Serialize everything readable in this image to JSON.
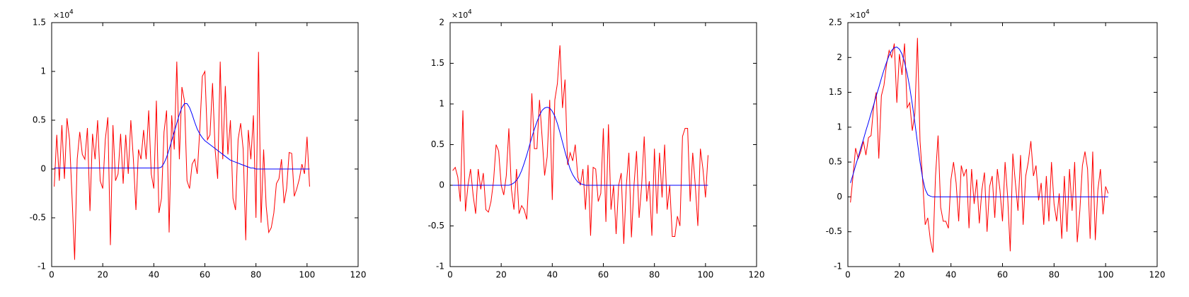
{
  "chart_data": [
    {
      "type": "line",
      "y_multiplier": {
        "base": "×10",
        "exponent": "4"
      },
      "xlim": [
        0,
        120
      ],
      "xticks": [
        0,
        20,
        40,
        60,
        80,
        100,
        120
      ],
      "ylim": [
        -1,
        1.5
      ],
      "yticks": [
        -1,
        -0.5,
        0,
        0.5,
        1,
        1.5
      ],
      "x": [
        1,
        2,
        3,
        4,
        5,
        6,
        7,
        8,
        9,
        10,
        11,
        12,
        13,
        14,
        15,
        16,
        17,
        18,
        19,
        20,
        21,
        22,
        23,
        24,
        25,
        26,
        27,
        28,
        29,
        30,
        31,
        32,
        33,
        34,
        35,
        36,
        37,
        38,
        39,
        40,
        41,
        42,
        43,
        44,
        45,
        46,
        47,
        48,
        49,
        50,
        51,
        52,
        53,
        54,
        55,
        56,
        57,
        58,
        59,
        60,
        61,
        62,
        63,
        64,
        65,
        66,
        67,
        68,
        69,
        70,
        71,
        72,
        73,
        74,
        75,
        76,
        77,
        78,
        79,
        80,
        81,
        82,
        83,
        84,
        85,
        86,
        87,
        88,
        89,
        90,
        91,
        92,
        93,
        94,
        95,
        96,
        97,
        98,
        99,
        100,
        101
      ],
      "series": [
        {
          "color": "#ff0000",
          "values": [
            -0.18,
            0.35,
            -0.12,
            0.45,
            -0.1,
            0.52,
            0.3,
            -0.3,
            -0.93,
            0.1,
            0.38,
            0.15,
            0.1,
            0.42,
            -0.43,
            0.36,
            0.1,
            0.5,
            -0.12,
            -0.2,
            0.3,
            0.53,
            -0.78,
            0.45,
            -0.12,
            -0.05,
            0.36,
            -0.15,
            0.35,
            -0.05,
            0.5,
            0.1,
            -0.42,
            0.2,
            0.1,
            0.4,
            0.1,
            0.6,
            -0.05,
            -0.2,
            0.7,
            -0.45,
            -0.3,
            0.38,
            0.6,
            -0.65,
            0.55,
            0.2,
            1.1,
            0.1,
            0.84,
            0.7,
            -0.12,
            -0.2,
            0.05,
            0.1,
            -0.05,
            0.4,
            0.95,
            1.0,
            0.3,
            0.35,
            0.88,
            0.2,
            -0.1,
            1.1,
            0.1,
            0.85,
            0.15,
            0.5,
            -0.3,
            -0.42,
            0.3,
            0.47,
            0.2,
            -0.73,
            0.4,
            0.1,
            0.55,
            -0.5,
            1.2,
            -0.55,
            0.2,
            -0.38,
            -0.65,
            -0.6,
            -0.45,
            -0.15,
            -0.1,
            0.1,
            -0.35,
            -0.2,
            0.17,
            0.16,
            -0.28,
            -0.2,
            -0.1,
            0.05,
            -0.05,
            0.33,
            -0.18
          ]
        },
        {
          "color": "#0000ff",
          "values": [
            0.01,
            0.01,
            0.01,
            0.01,
            0.01,
            0.01,
            0.01,
            0.01,
            0.01,
            0.01,
            0.01,
            0.01,
            0.01,
            0.01,
            0.01,
            0.01,
            0.01,
            0.01,
            0.01,
            0.01,
            0.01,
            0.01,
            0.01,
            0.01,
            0.01,
            0.01,
            0.01,
            0.01,
            0.01,
            0.01,
            0.01,
            0.01,
            0.01,
            0.01,
            0.01,
            0.01,
            0.01,
            0.01,
            0.01,
            0.01,
            0.01,
            0.01,
            0.02,
            0.06,
            0.12,
            0.2,
            0.29,
            0.38,
            0.47,
            0.56,
            0.63,
            0.67,
            0.67,
            0.63,
            0.56,
            0.48,
            0.41,
            0.36,
            0.32,
            0.29,
            0.27,
            0.25,
            0.23,
            0.21,
            0.19,
            0.17,
            0.15,
            0.13,
            0.11,
            0.09,
            0.08,
            0.07,
            0.06,
            0.05,
            0.04,
            0.03,
            0.02,
            0.01,
            0.01,
            0,
            0,
            0,
            0,
            0,
            0,
            0,
            0,
            0,
            0,
            0,
            0,
            0,
            0,
            0,
            0,
            0,
            0,
            0,
            0,
            0,
            0
          ]
        }
      ]
    },
    {
      "type": "line",
      "y_multiplier": {
        "base": "×10",
        "exponent": "4"
      },
      "xlim": [
        0,
        120
      ],
      "xticks": [
        0,
        20,
        40,
        60,
        80,
        100,
        120
      ],
      "ylim": [
        -1,
        2
      ],
      "yticks": [
        -1,
        -0.5,
        0,
        0.5,
        1,
        1.5,
        2
      ],
      "x": [
        1,
        2,
        3,
        4,
        5,
        6,
        7,
        8,
        9,
        10,
        11,
        12,
        13,
        14,
        15,
        16,
        17,
        18,
        19,
        20,
        21,
        22,
        23,
        24,
        25,
        26,
        27,
        28,
        29,
        30,
        31,
        32,
        33,
        34,
        35,
        36,
        37,
        38,
        39,
        40,
        41,
        42,
        43,
        44,
        45,
        46,
        47,
        48,
        49,
        50,
        51,
        52,
        53,
        54,
        55,
        56,
        57,
        58,
        59,
        60,
        61,
        62,
        63,
        64,
        65,
        66,
        67,
        68,
        69,
        70,
        71,
        72,
        73,
        74,
        75,
        76,
        77,
        78,
        79,
        80,
        81,
        82,
        83,
        84,
        85,
        86,
        87,
        88,
        89,
        90,
        91,
        92,
        93,
        94,
        95,
        96,
        97,
        98,
        99,
        100,
        101
      ],
      "series": [
        {
          "color": "#ff0000",
          "values": [
            0.18,
            0.22,
            0.1,
            -0.2,
            0.92,
            -0.32,
            0.0,
            0.2,
            -0.12,
            -0.35,
            0.2,
            -0.05,
            0.15,
            -0.3,
            -0.33,
            -0.2,
            0.05,
            0.5,
            0.42,
            0.0,
            -0.12,
            0.12,
            0.7,
            -0.05,
            -0.3,
            0.2,
            -0.35,
            -0.25,
            -0.3,
            -0.42,
            0.2,
            1.13,
            0.45,
            0.45,
            1.05,
            0.6,
            0.12,
            0.35,
            1.05,
            -0.18,
            1.05,
            1.25,
            1.72,
            0.95,
            1.3,
            0.25,
            0.4,
            0.3,
            0.5,
            0.1,
            0.0,
            0.2,
            -0.3,
            0.25,
            -0.62,
            0.22,
            0.2,
            -0.2,
            -0.1,
            0.7,
            -0.45,
            0.75,
            -0.3,
            0.0,
            -0.6,
            0.0,
            0.15,
            -0.72,
            0.0,
            0.4,
            -0.64,
            0.0,
            0.42,
            -0.4,
            0.0,
            0.6,
            -0.2,
            0.05,
            -0.62,
            0.45,
            -0.35,
            0.4,
            -0.15,
            0.5,
            -0.3,
            0.0,
            -0.63,
            -0.63,
            -0.38,
            -0.5,
            0.6,
            0.7,
            0.7,
            -0.2,
            0.4,
            0.0,
            -0.5,
            0.45,
            0.2,
            -0.15,
            0.37
          ]
        },
        {
          "color": "#0000ff",
          "values": [
            0,
            0,
            0,
            0,
            0,
            0,
            0,
            0,
            0,
            0,
            0,
            0,
            0,
            0,
            0,
            0,
            0,
            0,
            0,
            0,
            0,
            0,
            0,
            0.01,
            0.03,
            0.06,
            0.11,
            0.18,
            0.27,
            0.37,
            0.48,
            0.59,
            0.69,
            0.78,
            0.86,
            0.92,
            0.95,
            0.96,
            0.95,
            0.91,
            0.85,
            0.76,
            0.65,
            0.53,
            0.41,
            0.3,
            0.2,
            0.13,
            0.08,
            0.04,
            0.02,
            0.01,
            0,
            0,
            0,
            0,
            0,
            0,
            0,
            0,
            0,
            0,
            0,
            0,
            0,
            0,
            0,
            0,
            0,
            0,
            0,
            0,
            0,
            0,
            0,
            0,
            0,
            0,
            0,
            0,
            0,
            0,
            0,
            0,
            0,
            0,
            0,
            0,
            0,
            0,
            0,
            0,
            0,
            0,
            0,
            0,
            0,
            0,
            0,
            0,
            0
          ]
        }
      ]
    },
    {
      "type": "line",
      "y_multiplier": {
        "base": "×10",
        "exponent": "4"
      },
      "xlim": [
        0,
        120
      ],
      "xticks": [
        0,
        20,
        40,
        60,
        80,
        100,
        120
      ],
      "ylim": [
        -1,
        2.5
      ],
      "yticks": [
        -1,
        -0.5,
        0,
        0.5,
        1,
        1.5,
        2,
        2.5
      ],
      "x": [
        1,
        2,
        3,
        4,
        5,
        6,
        7,
        8,
        9,
        10,
        11,
        12,
        13,
        14,
        15,
        16,
        17,
        18,
        19,
        20,
        21,
        22,
        23,
        24,
        25,
        26,
        27,
        28,
        29,
        30,
        31,
        32,
        33,
        34,
        35,
        36,
        37,
        38,
        39,
        40,
        41,
        42,
        43,
        44,
        45,
        46,
        47,
        48,
        49,
        50,
        51,
        52,
        53,
        54,
        55,
        56,
        57,
        58,
        59,
        60,
        61,
        62,
        63,
        64,
        65,
        66,
        67,
        68,
        69,
        70,
        71,
        72,
        73,
        74,
        75,
        76,
        77,
        78,
        79,
        80,
        81,
        82,
        83,
        84,
        85,
        86,
        87,
        88,
        89,
        90,
        91,
        92,
        93,
        94,
        95,
        96,
        97,
        98,
        99,
        100,
        101
      ],
      "series": [
        {
          "color": "#ff0000",
          "values": [
            -0.08,
            0.3,
            0.7,
            0.55,
            0.65,
            0.8,
            0.6,
            0.85,
            0.88,
            1.3,
            1.5,
            0.55,
            1.45,
            1.6,
            1.9,
            2.1,
            2.0,
            2.2,
            1.35,
            2.05,
            1.75,
            2.2,
            1.28,
            1.35,
            0.95,
            1.2,
            2.28,
            0.8,
            0.25,
            -0.4,
            -0.3,
            -0.62,
            -0.8,
            0.3,
            0.88,
            -0.15,
            -0.35,
            -0.35,
            -0.45,
            0.25,
            0.5,
            0.2,
            -0.35,
            0.45,
            0.3,
            0.4,
            -0.45,
            0.4,
            -0.1,
            0.25,
            -0.38,
            0.1,
            0.35,
            -0.5,
            0.15,
            0.3,
            -0.3,
            0.4,
            0.1,
            -0.35,
            0.5,
            0.0,
            -0.78,
            0.62,
            0.2,
            -0.2,
            0.6,
            -0.4,
            0.3,
            0.5,
            0.8,
            0.3,
            0.45,
            -0.05,
            0.2,
            -0.4,
            0.3,
            -0.35,
            0.5,
            -0.1,
            -0.35,
            0.05,
            -0.6,
            0.3,
            -0.5,
            0.4,
            -0.2,
            0.5,
            -0.65,
            -0.2,
            0.45,
            0.65,
            0.4,
            -0.6,
            0.65,
            -0.62,
            0.1,
            0.4,
            -0.25,
            0.15,
            0.05
          ]
        },
        {
          "color": "#0000ff",
          "values": [
            0.2,
            0.32,
            0.45,
            0.57,
            0.7,
            0.82,
            0.95,
            1.07,
            1.2,
            1.32,
            1.45,
            1.57,
            1.7,
            1.82,
            1.93,
            2.03,
            2.1,
            2.14,
            2.15,
            2.12,
            2.05,
            1.93,
            1.77,
            1.57,
            1.33,
            1.06,
            0.78,
            0.5,
            0.27,
            0.11,
            0.03,
            0.01,
            0,
            0,
            0,
            0,
            0,
            0,
            0,
            0,
            0,
            0,
            0,
            0,
            0,
            0,
            0,
            0,
            0,
            0,
            0,
            0,
            0,
            0,
            0,
            0,
            0,
            0,
            0,
            0,
            0,
            0,
            0,
            0,
            0,
            0,
            0,
            0,
            0,
            0,
            0,
            0,
            0,
            0,
            0,
            0,
            0,
            0,
            0,
            0,
            0,
            0,
            0,
            0,
            0,
            0,
            0,
            0,
            0,
            0,
            0,
            0,
            0,
            0,
            0,
            0,
            0,
            0,
            0,
            0,
            0
          ]
        }
      ]
    }
  ]
}
